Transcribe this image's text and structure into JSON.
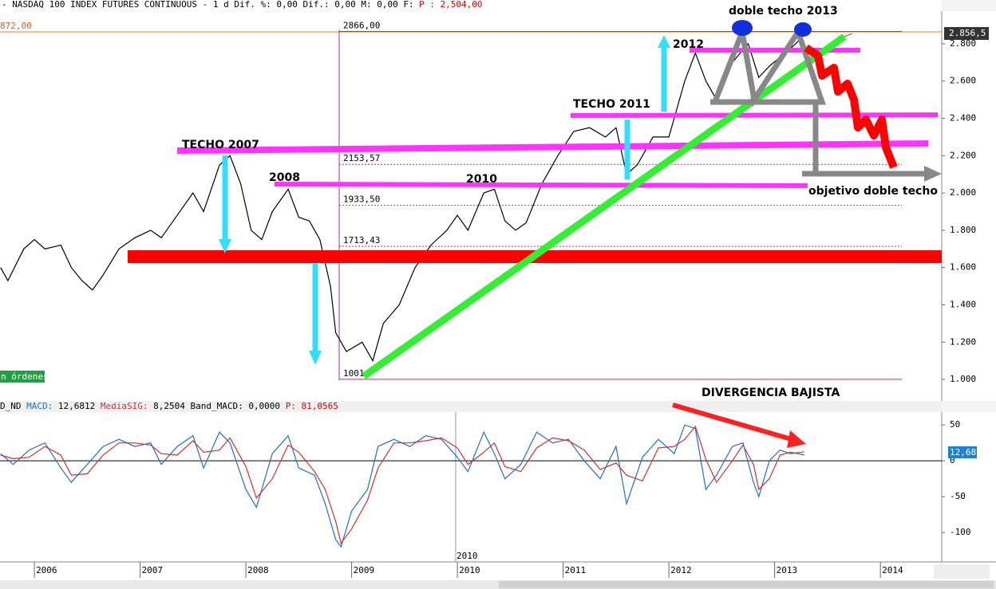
{
  "chart_data": [
    {
      "type": "line",
      "title": "- NASDAQ 100 INDEX FUTURES CONTINUOUS -  1 d Dif. %: 0,00 Dif.: 0,00 M: 0,00 F:",
      "price_label": "P : 2,504,00",
      "left_label": "872,00",
      "last_price": "2.856,5",
      "orders_label": "n órdenes",
      "annotations": [
        "doble techo  2013",
        "2012",
        "TECHO 2011",
        "TECHO 2007",
        "2008",
        "2010",
        "objetivo doble techo",
        "DIVERGENCIA BAJISTA"
      ],
      "levels": [
        {
          "value": 2866,
          "label": "2866,00"
        },
        {
          "value": 2153.57,
          "label": "2153,57"
        },
        {
          "value": 1933.5,
          "label": "1933,50"
        },
        {
          "value": 1713.43,
          "label": "1713,43"
        },
        {
          "value": 1001,
          "label": "1001,"
        }
      ],
      "xlim": [
        2005.675,
        2014.58
      ],
      "ylim": [
        885,
        2975
      ],
      "yticks": [
        {
          "value": 1000,
          "label": "1.000"
        },
        {
          "value": 1200,
          "label": "1.200"
        },
        {
          "value": 1400,
          "label": "1.400"
        },
        {
          "value": 1600,
          "label": "1.600"
        },
        {
          "value": 1800,
          "label": "1.800"
        },
        {
          "value": 2000,
          "label": "2.000"
        },
        {
          "value": 2200,
          "label": "2.200"
        },
        {
          "value": 2400,
          "label": "2.400"
        },
        {
          "value": 2600,
          "label": "2.600"
        },
        {
          "value": 2800,
          "label": "2.800"
        }
      ],
      "x": [
        2005.68,
        2005.75,
        2005.9,
        2006.0,
        2006.1,
        2006.25,
        2006.35,
        2006.45,
        2006.55,
        2006.65,
        2006.8,
        2006.95,
        2007.1,
        2007.2,
        2007.35,
        2007.5,
        2007.6,
        2007.75,
        2007.85,
        2007.95,
        2008.05,
        2008.15,
        2008.25,
        2008.4,
        2008.5,
        2008.6,
        2008.7,
        2008.8,
        2008.85,
        2008.95,
        2009.1,
        2009.2,
        2009.3,
        2009.45,
        2009.6,
        2009.75,
        2009.9,
        2010.0,
        2010.1,
        2010.25,
        2010.35,
        2010.45,
        2010.55,
        2010.65,
        2010.8,
        2010.95,
        2011.1,
        2011.25,
        2011.4,
        2011.5,
        2011.6,
        2011.7,
        2011.85,
        2012.0,
        2012.15,
        2012.25,
        2012.35,
        2012.45,
        2012.6,
        2012.75,
        2012.85,
        2012.95,
        2013.1,
        2013.2,
        2013.28
      ],
      "series": [
        {
          "name": "NASDAQ 100",
          "color": "#000000",
          "values": [
            1600,
            1530,
            1700,
            1750,
            1700,
            1720,
            1600,
            1530,
            1480,
            1560,
            1700,
            1760,
            1800,
            1760,
            1880,
            2000,
            1900,
            2150,
            2200,
            2050,
            1800,
            1750,
            1900,
            2020,
            1870,
            1850,
            1750,
            1500,
            1250,
            1150,
            1200,
            1100,
            1300,
            1400,
            1600,
            1720,
            1800,
            1880,
            1800,
            2000,
            2020,
            1850,
            1800,
            1840,
            2050,
            2200,
            2330,
            2350,
            2300,
            2350,
            2100,
            2150,
            2300,
            2300,
            2600,
            2750,
            2600,
            2500,
            2700,
            2800,
            2620,
            2680,
            2750,
            2800,
            2850
          ]
        }
      ]
    },
    {
      "type": "line",
      "header_prefix": "D_ND",
      "band_label": "Band_MACD: 0,0000",
      "p_label": "P: 81,0565",
      "macd_value": "12,6812",
      "signal_value": "8,2504",
      "last_label": "12,68",
      "divider_label": "2010",
      "xlim": [
        2005.675,
        2014.58
      ],
      "xticks": [
        2006,
        2007,
        2008,
        2009,
        2010,
        2011,
        2012,
        2013,
        2014
      ],
      "ylim": [
        -141,
        68
      ],
      "yticks": [
        50,
        0,
        -50,
        -100
      ],
      "x": [
        2005.68,
        2005.8,
        2005.95,
        2006.1,
        2006.25,
        2006.35,
        2006.5,
        2006.65,
        2006.8,
        2006.95,
        2007.1,
        2007.2,
        2007.35,
        2007.5,
        2007.6,
        2007.75,
        2007.85,
        2008.0,
        2008.1,
        2008.25,
        2008.4,
        2008.5,
        2008.65,
        2008.75,
        2008.85,
        2008.9,
        2009.0,
        2009.15,
        2009.25,
        2009.4,
        2009.55,
        2009.7,
        2009.85,
        2010.0,
        2010.1,
        2010.25,
        2010.35,
        2010.45,
        2010.6,
        2010.75,
        2010.9,
        2011.05,
        2011.2,
        2011.35,
        2011.5,
        2011.6,
        2011.75,
        2011.9,
        2012.05,
        2012.15,
        2012.25,
        2012.35,
        2012.45,
        2012.6,
        2012.7,
        2012.8,
        2012.85,
        2012.95,
        2013.05,
        2013.15,
        2013.28
      ],
      "series": [
        {
          "name": "MACD:",
          "color": "#1f6fd0",
          "values": [
            10,
            -5,
            15,
            25,
            -10,
            -30,
            -5,
            20,
            30,
            20,
            25,
            -5,
            20,
            35,
            -10,
            40,
            25,
            -40,
            -65,
            10,
            35,
            -10,
            -20,
            -60,
            -110,
            -120,
            -70,
            -40,
            20,
            30,
            20,
            35,
            30,
            5,
            -15,
            40,
            10,
            -25,
            -5,
            40,
            25,
            30,
            0,
            -25,
            20,
            -60,
            5,
            30,
            10,
            50,
            45,
            -40,
            -20,
            20,
            25,
            -30,
            -50,
            0,
            15,
            10,
            12.68
          ]
        },
        {
          "name": "MediaSIG:",
          "color": "#d03030",
          "values": [
            8,
            3,
            5,
            20,
            8,
            -20,
            -18,
            8,
            25,
            25,
            22,
            10,
            8,
            28,
            12,
            15,
            32,
            -8,
            -52,
            -25,
            22,
            12,
            -15,
            -40,
            -85,
            -115,
            -95,
            -55,
            -10,
            25,
            25,
            28,
            32,
            18,
            -5,
            12,
            25,
            -8,
            -15,
            18,
            32,
            28,
            15,
            -12,
            -3,
            -20,
            -28,
            18,
            20,
            30,
            48,
            2,
            -30,
            0,
            22,
            -5,
            -40,
            -25,
            8,
            12,
            8.25
          ]
        }
      ]
    }
  ]
}
